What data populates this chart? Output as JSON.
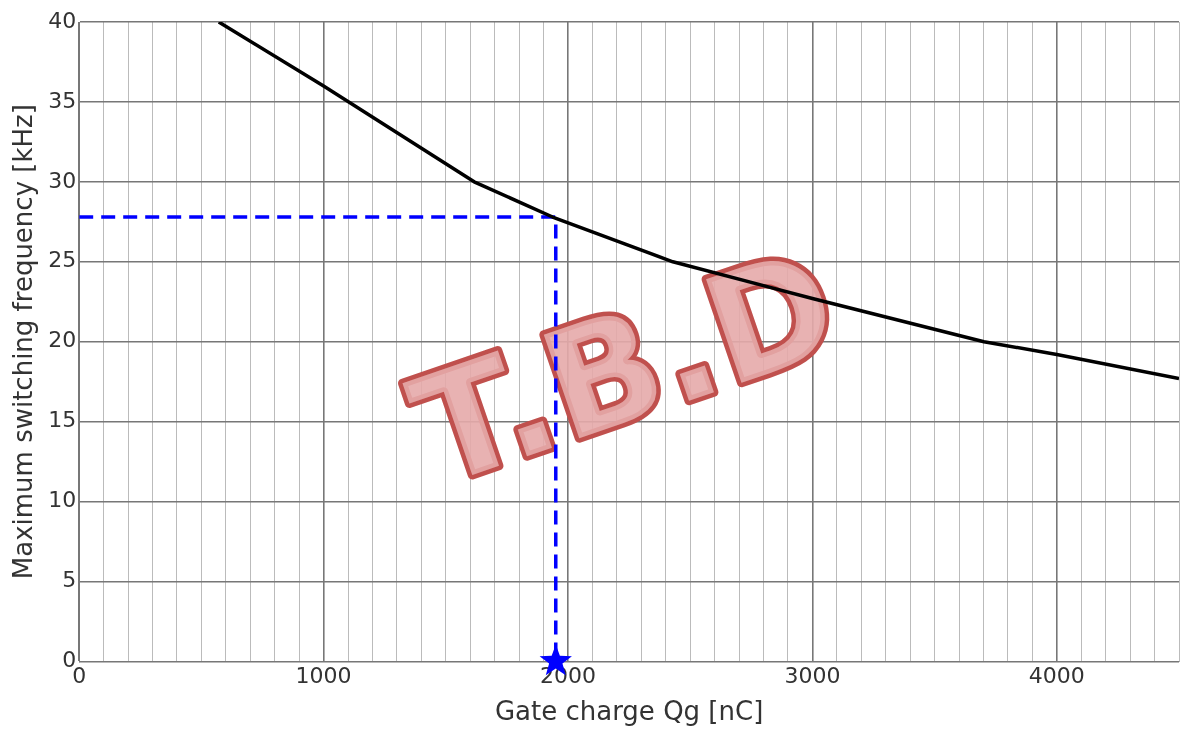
{
  "chart_data": {
    "type": "line",
    "xlabel": "Gate charge Qg [nC]",
    "ylabel": "Maximum switching frequency [kHz]",
    "xlim": [
      0,
      4500
    ],
    "ylim": [
      0,
      40
    ],
    "xticks": [
      0,
      {
        "value": 100,
        "label": null
      },
      {
        "value": 200,
        "label": null
      },
      {
        "value": 300,
        "label": null
      },
      {
        "value": 400,
        "label": null
      },
      {
        "value": 500,
        "label": null
      },
      {
        "value": 600,
        "label": null
      },
      {
        "value": 700,
        "label": null
      },
      {
        "value": 800,
        "label": null
      },
      {
        "value": 900,
        "label": null
      },
      1000,
      {
        "value": 1100,
        "label": null
      },
      {
        "value": 1200,
        "label": null
      },
      {
        "value": 1300,
        "label": null
      },
      {
        "value": 1400,
        "label": null
      },
      {
        "value": 1500,
        "label": null
      },
      {
        "value": 1600,
        "label": null
      },
      {
        "value": 1700,
        "label": null
      },
      {
        "value": 1800,
        "label": null
      },
      {
        "value": 1900,
        "label": null
      },
      2000,
      {
        "value": 2100,
        "label": null
      },
      {
        "value": 2200,
        "label": null
      },
      {
        "value": 2300,
        "label": null
      },
      {
        "value": 2400,
        "label": null
      },
      {
        "value": 2500,
        "label": null
      },
      {
        "value": 2600,
        "label": null
      },
      {
        "value": 2700,
        "label": null
      },
      {
        "value": 2800,
        "label": null
      },
      {
        "value": 2900,
        "label": null
      },
      3000,
      {
        "value": 3100,
        "label": null
      },
      {
        "value": 3200,
        "label": null
      },
      {
        "value": 3300,
        "label": null
      },
      {
        "value": 3400,
        "label": null
      },
      {
        "value": 3500,
        "label": null
      },
      {
        "value": 3600,
        "label": null
      },
      {
        "value": 3700,
        "label": null
      },
      {
        "value": 3800,
        "label": null
      },
      {
        "value": 3900,
        "label": null
      },
      4000,
      {
        "value": 4100,
        "label": null
      },
      {
        "value": 4200,
        "label": null
      },
      {
        "value": 4300,
        "label": null
      },
      {
        "value": 4400,
        "label": null
      },
      {
        "value": 4500,
        "label": null
      }
    ],
    "yticks": [
      0,
      5,
      10,
      15,
      20,
      25,
      30,
      35,
      40
    ],
    "grid": true,
    "legend": false,
    "marker": "none",
    "series": [
      {
        "color": "#000000",
        "x": [
          571,
          1000,
          1616,
          1937,
          2429,
          3000,
          3702,
          4000,
          4500
        ],
        "values": [
          40,
          36,
          30,
          27.8,
          25,
          22.7,
          20,
          19.2,
          17.7
        ]
      },
      {
        "type": "line",
        "color": "#0000ff",
        "line_style": "dashed",
        "x": [
          0,
          1950,
          1950
        ],
        "values": [
          27.8,
          27.8,
          0
        ]
      },
      {
        "type": "scatter",
        "color": "#0000ff",
        "marker": "star",
        "x": [
          1950
        ],
        "values": [
          0
        ]
      }
    ],
    "annotations": [
      "T.B.D"
    ]
  }
}
